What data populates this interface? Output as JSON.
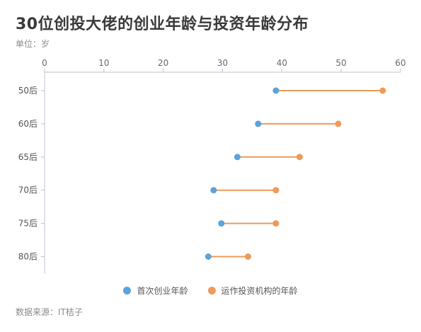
{
  "header": {
    "title": "30位创投大佬的创业年龄与投资年龄分布",
    "unit": "单位：岁"
  },
  "footer": {
    "source": "数据来源：IT桔子"
  },
  "chart_data": {
    "type": "dumbbell",
    "x_axis": {
      "min": 0,
      "max": 60,
      "ticks": [
        0,
        10,
        20,
        30,
        40,
        50,
        60
      ],
      "position": "top"
    },
    "categories": [
      "50后",
      "60后",
      "65后",
      "70后",
      "75后",
      "80后"
    ],
    "series": [
      {
        "name": "首次创业年龄",
        "color": "#5ba3db",
        "values": [
          39,
          36,
          32.5,
          28.5,
          29.8,
          27.6
        ]
      },
      {
        "name": "运作投资机构的年龄",
        "color": "#ee9a58",
        "values": [
          57,
          49.5,
          43,
          39,
          39,
          34.3
        ]
      }
    ],
    "connector_color": "#ee9a58",
    "legend_position": "bottom"
  }
}
